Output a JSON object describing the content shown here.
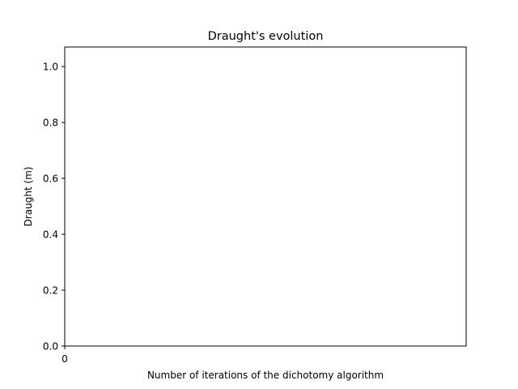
{
  "chart_data": {
    "type": "line",
    "title": "Draught's evolution",
    "xlabel": "Number of iterations of the dichotomy algorithm",
    "ylabel": "Draught (m)",
    "x_ticks": [
      {
        "value": 0,
        "label": "0"
      }
    ],
    "y_ticks": [
      {
        "value": 0.0,
        "label": "0.0"
      },
      {
        "value": 0.2,
        "label": "0.2"
      },
      {
        "value": 0.4,
        "label": "0.4"
      },
      {
        "value": 0.6,
        "label": "0.6"
      },
      {
        "value": 0.8,
        "label": "0.8"
      },
      {
        "value": 1.0,
        "label": "1.0"
      }
    ],
    "xlim": [
      0,
      1
    ],
    "ylim": [
      0,
      1.07
    ],
    "grid": false,
    "series": [
      {
        "values": []
      }
    ]
  }
}
